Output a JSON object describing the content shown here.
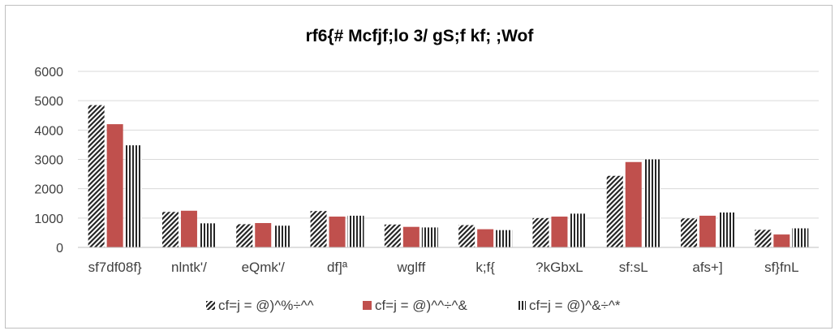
{
  "chart_data": {
    "type": "bar",
    "title": "rf6{# Mcfjf;lo 3/ gS;f kf; ;Wof",
    "xlabel": "",
    "ylabel": "",
    "ylim": [
      0,
      6000
    ],
    "yticks": [
      "0",
      "1000",
      "2000",
      "3000",
      "4000",
      "5000",
      "6000"
    ],
    "grid": true,
    "legend_position": "bottom",
    "categories": [
      "sf7df08f}",
      "nlntk'/",
      "eQmk'/",
      "df]ª",
      "wglff",
      "k;f{",
      "?kGbxL",
      "sf:sL",
      "afs+]",
      "sf}fnL"
    ],
    "series": [
      {
        "name": "cf=j = @)^%÷^^",
        "color": "#262626",
        "pattern": "diagonal",
        "values": [
          4850,
          1210,
          790,
          1240,
          780,
          760,
          1000,
          2440,
          990,
          600
        ]
      },
      {
        "name": "cf=j = @)^^÷^&",
        "color": "#c0504d",
        "pattern": "solid",
        "values": [
          4200,
          1250,
          830,
          1050,
          700,
          620,
          1050,
          2910,
          1080,
          440
        ]
      },
      {
        "name": "cf=j = @)^&÷^*",
        "color": "#262626",
        "pattern": "vertical",
        "values": [
          3480,
          820,
          740,
          1080,
          680,
          590,
          1150,
          3000,
          1190,
          650
        ]
      }
    ]
  }
}
